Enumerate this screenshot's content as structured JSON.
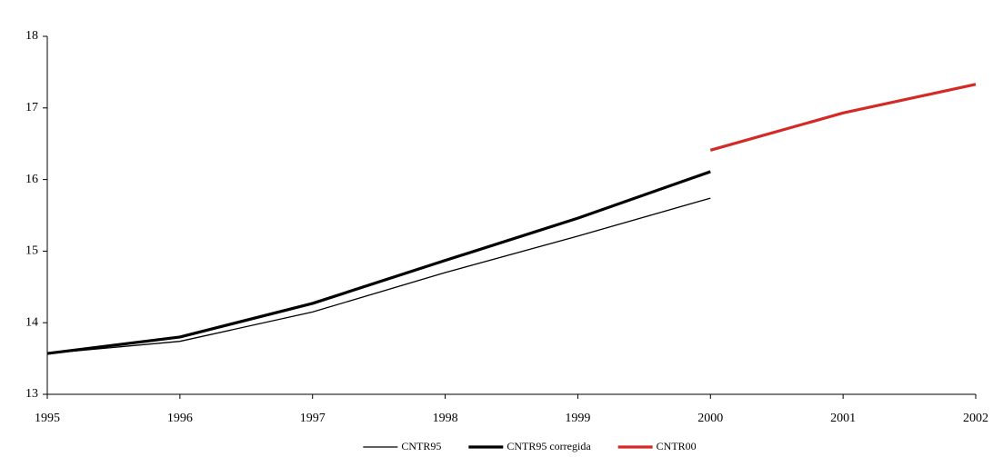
{
  "chart_data": {
    "type": "line",
    "x": [
      1995,
      1996,
      1997,
      1998,
      1999,
      2000,
      2001,
      2002
    ],
    "series": [
      {
        "name": "CNTR95",
        "color": "#000000",
        "values": [
          13.57,
          13.74,
          14.15,
          14.7,
          15.21,
          15.74,
          null,
          null
        ]
      },
      {
        "name": "CNTR95 corregida",
        "color": "#000000",
        "values": [
          13.57,
          13.8,
          14.27,
          14.87,
          15.46,
          16.11,
          null,
          null
        ]
      },
      {
        "name": "CNTR00",
        "color": "#d42a26",
        "values": [
          null,
          null,
          null,
          null,
          null,
          16.41,
          16.93,
          17.33
        ]
      }
    ],
    "xlim": [
      1995,
      2002
    ],
    "xticks": [
      1995,
      1996,
      1997,
      1998,
      1999,
      2000,
      2001,
      2002
    ],
    "ylim": [
      13,
      18
    ],
    "yticks": [
      13,
      14,
      15,
      16,
      17,
      18
    ],
    "grid": false,
    "legend": "bottom"
  }
}
